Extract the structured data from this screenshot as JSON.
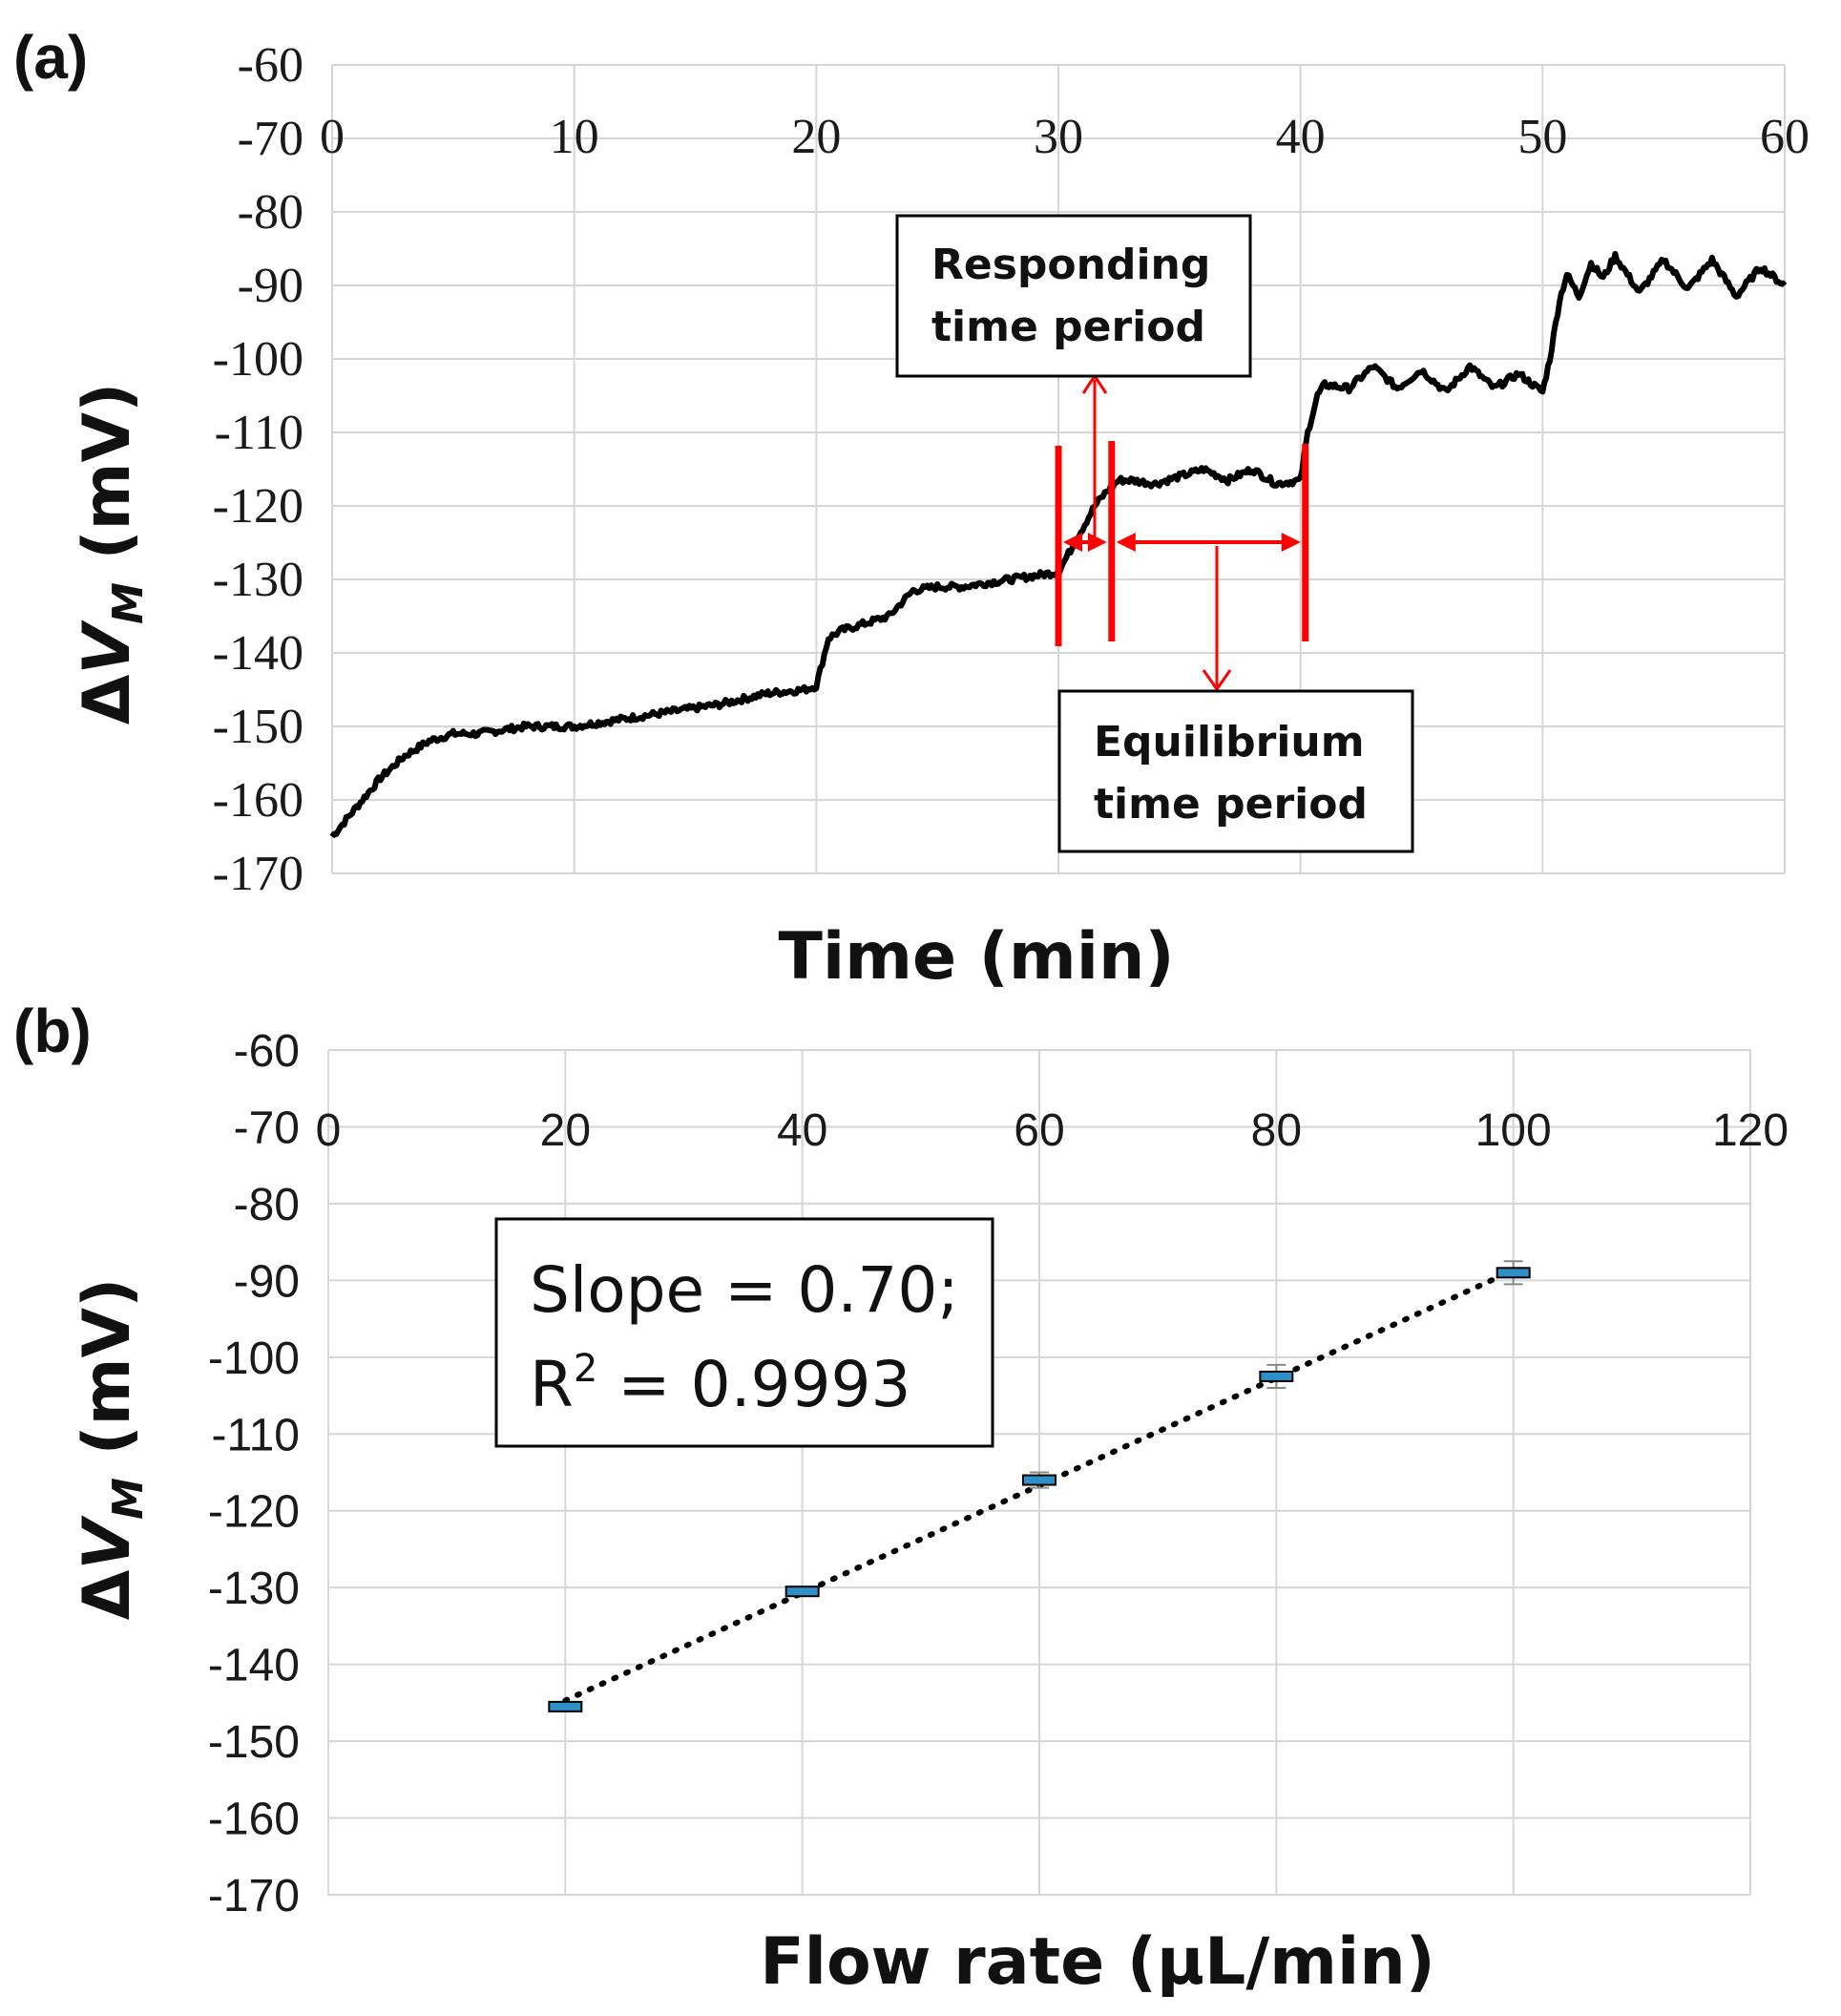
{
  "chart_data": [
    {
      "type": "line",
      "panel_label": "(a)",
      "xlabel": "Time (min)",
      "ylabel": "ΔV_M (mV)",
      "xlim": [
        0,
        60
      ],
      "ylim": [
        -170,
        -60
      ],
      "x_ticks": [
        "0",
        "10",
        "20",
        "30",
        "40",
        "50",
        "60"
      ],
      "y_ticks": [
        "-60",
        "-70",
        "-80",
        "-90",
        "-100",
        "-110",
        "-120",
        "-130",
        "-140",
        "-150",
        "-160",
        "-170"
      ],
      "grid": true,
      "series": [
        {
          "name": "ΔV_M",
          "color": "#000000",
          "x": [
            0,
            1,
            2,
            3,
            4,
            5,
            6,
            8,
            10,
            12,
            14,
            16,
            18,
            19.5,
            20,
            20.5,
            21,
            22,
            23,
            24,
            25,
            26,
            27,
            28,
            29,
            30,
            30.5,
            31,
            31.5,
            32,
            32.5,
            33,
            34,
            35,
            36,
            37,
            38,
            39,
            40,
            40.3,
            40.7,
            41,
            42,
            43,
            44,
            45,
            46,
            47,
            48,
            49,
            50,
            50.3,
            50.7,
            51,
            51.5,
            52,
            52.5,
            53,
            54,
            55,
            56,
            57,
            58,
            59,
            60
          ],
          "y": [
            -165,
            -161,
            -157,
            -154,
            -152,
            -151,
            -151,
            -150,
            -150,
            -149,
            -148,
            -147,
            -145.5,
            -145,
            -144.5,
            -138,
            -137,
            -136,
            -135,
            -131.5,
            -131,
            -131,
            -130.5,
            -130,
            -129.5,
            -129,
            -126,
            -123,
            -120,
            -118,
            -116.5,
            -116.5,
            -117,
            -116,
            -115,
            -116.5,
            -115,
            -117,
            -116.5,
            -110,
            -105,
            -103.5,
            -104,
            -101,
            -104,
            -101.5,
            -104.5,
            -101,
            -104,
            -102,
            -104.5,
            -100,
            -92,
            -88.5,
            -91.5,
            -87,
            -89,
            -86,
            -91,
            -86.5,
            -90.5,
            -86.5,
            -91.5,
            -87.5,
            -90
          ]
        }
      ],
      "annotations": [
        {
          "text_line1": "Responding",
          "text_line2": "time period",
          "x_start": 30,
          "x_end": 32.2
        },
        {
          "text_line1": "Equilibrium",
          "text_line2": "time period",
          "x_start": 32.2,
          "x_end": 40.2
        }
      ]
    },
    {
      "type": "scatter",
      "panel_label": "(b)",
      "xlabel": "Flow rate (μL/min)",
      "ylabel": "ΔV_M (mV)",
      "xlim": [
        0,
        120
      ],
      "ylim": [
        -170,
        -60
      ],
      "x_ticks": [
        "0",
        "20",
        "40",
        "60",
        "80",
        "100",
        "120"
      ],
      "y_ticks": [
        "-60",
        "-70",
        "-80",
        "-90",
        "-100",
        "-110",
        "-120",
        "-130",
        "-140",
        "-150",
        "-160",
        "-170"
      ],
      "grid": true,
      "x": [
        20,
        40,
        60,
        80,
        100
      ],
      "y": [
        -145.5,
        -130.5,
        -116,
        -102.5,
        -89
      ],
      "error": [
        0.5,
        0.5,
        1.0,
        1.5,
        1.5
      ],
      "trendline": {
        "style": "dotted",
        "slope": 0.7,
        "r2": 0.9993
      },
      "stats_line1": "Slope = 0.70;",
      "stats_line2_prefix": "R",
      "stats_line2_sup": "2",
      "stats_line2_rest": " = 0.9993"
    }
  ],
  "colors": {
    "curve": "#000000",
    "annotation": "#ff0000",
    "marker": "#2f8fc8",
    "grid": "#d6d6d6"
  }
}
